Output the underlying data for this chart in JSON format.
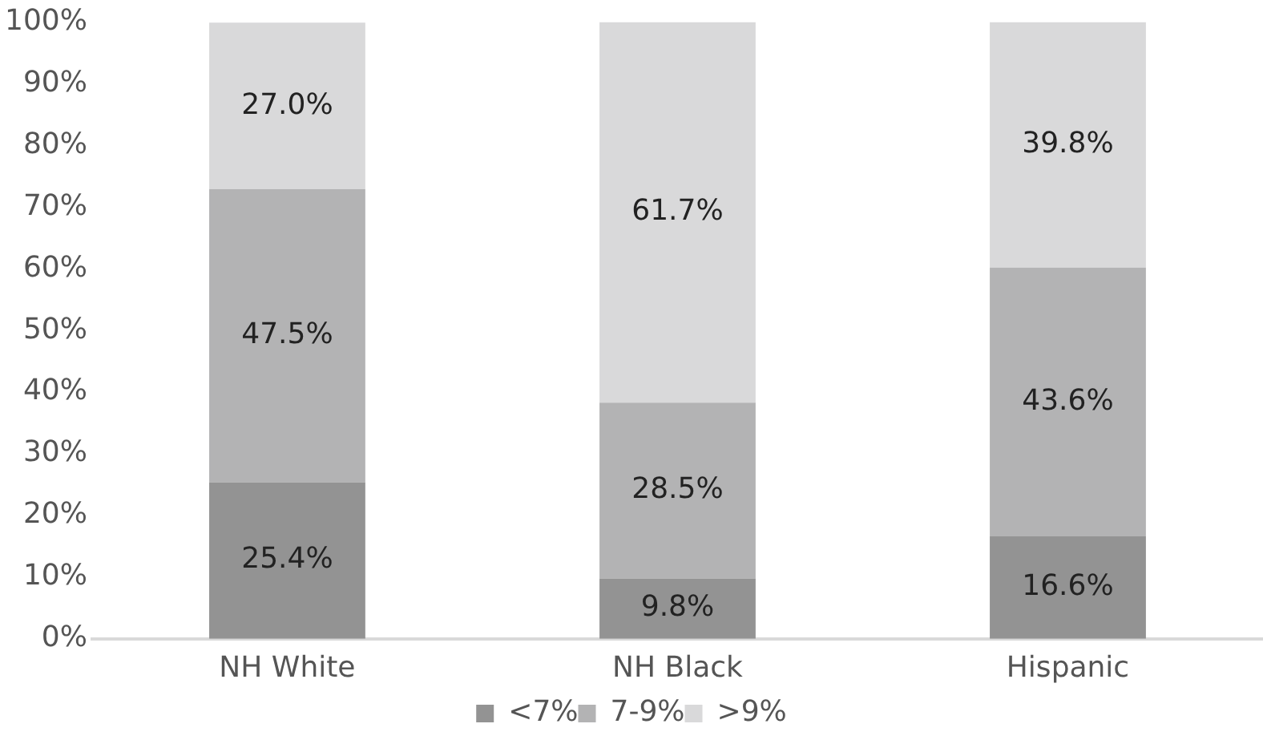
{
  "chart_data": {
    "type": "bar",
    "stacked": true,
    "categories": [
      "NH White",
      "NH Black",
      "Hispanic"
    ],
    "series": [
      {
        "name": "<7%",
        "color": "#939393",
        "values": [
          25.4,
          9.8,
          16.6
        ],
        "value_labels": [
          "25.4%",
          "9.8%",
          "16.6%"
        ]
      },
      {
        "name": "7-9%",
        "color": "#b3b3b4",
        "values": [
          47.5,
          28.5,
          43.6
        ],
        "value_labels": [
          "47.5%",
          "28.5%",
          "43.6%"
        ]
      },
      {
        "name": ">9%",
        "color": "#d9d9da",
        "values": [
          27.0,
          61.7,
          39.8
        ],
        "value_labels": [
          "27.0%",
          "61.7%",
          "39.8%"
        ]
      }
    ],
    "ylim": [
      0,
      100
    ],
    "yticks": [
      {
        "value": 0,
        "label": "0%"
      },
      {
        "value": 10,
        "label": "10%"
      },
      {
        "value": 20,
        "label": "20%"
      },
      {
        "value": 30,
        "label": "30%"
      },
      {
        "value": 40,
        "label": "40%"
      },
      {
        "value": 50,
        "label": "50%"
      },
      {
        "value": 60,
        "label": "60%"
      },
      {
        "value": 70,
        "label": "70%"
      },
      {
        "value": 80,
        "label": "80%"
      },
      {
        "value": 90,
        "label": "90%"
      },
      {
        "value": 100,
        "label": "100%"
      }
    ],
    "grid": false,
    "legend": "bottom"
  }
}
